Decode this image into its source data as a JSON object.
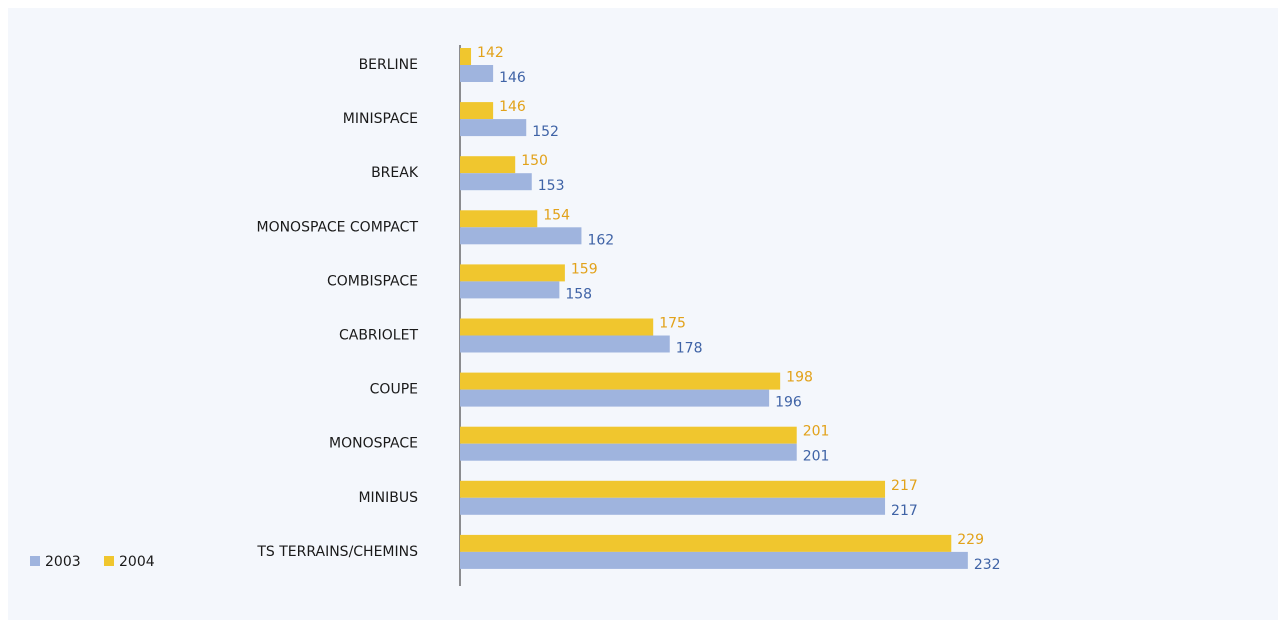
{
  "chart_data": {
    "type": "bar",
    "orientation": "horizontal",
    "categories": [
      "BERLINE",
      "MINISPACE",
      "BREAK",
      "MONOSPACE COMPACT",
      "COMBISPACE",
      "CABRIOLET",
      "COUPE",
      "MONOSPACE",
      "MINIBUS",
      "TS TERRAINS/CHEMINS"
    ],
    "series": [
      {
        "name": "2003",
        "color": "#9fb4de",
        "values": [
          146,
          152,
          153,
          162,
          158,
          178,
          196,
          201,
          217,
          232
        ]
      },
      {
        "name": "2004",
        "color": "#f0c62e",
        "values": [
          142,
          146,
          150,
          154,
          159,
          175,
          198,
          201,
          217,
          229
        ]
      }
    ],
    "xlim": [
      140,
      240
    ],
    "legend": "bottom-left"
  }
}
